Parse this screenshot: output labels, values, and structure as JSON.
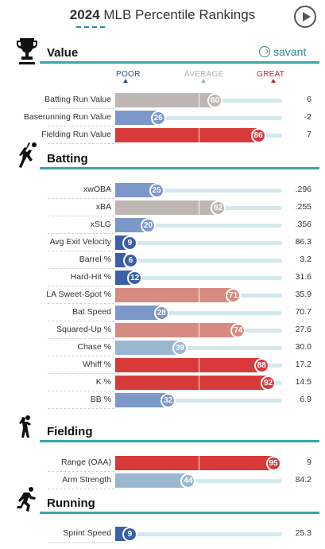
{
  "header": {
    "year": "2024",
    "title": "MLB Percentile Rankings"
  },
  "brand": {
    "name": "savant"
  },
  "scale": {
    "poor": "POOR",
    "average": "AVERAGE",
    "great": "GREAT"
  },
  "colors": {
    "section_line": "#3aa6a6",
    "track": "#d5e8ee",
    "poor_dark": "#3b5fa8",
    "poor": "#7c98c8",
    "cool": "#9bb7d0",
    "neutral": "#bdb6b3",
    "warm": "#d78a80",
    "great": "#d83a3a"
  },
  "chart_data": {
    "type": "bar",
    "xlim": [
      0,
      100
    ],
    "sections": [
      {
        "title": "Value",
        "icon": "trophy-icon",
        "rows": [
          {
            "label": "Batting Run Value",
            "percentile": 60,
            "value": "6"
          },
          {
            "label": "Baserunning Run Value",
            "percentile": 26,
            "value": "-2"
          },
          {
            "label": "Fielding Run Value",
            "percentile": 86,
            "value": "7"
          }
        ]
      },
      {
        "title": "Batting",
        "icon": "batter-icon",
        "rows": [
          {
            "label": "xwOBA",
            "percentile": 25,
            "value": ".296"
          },
          {
            "label": "xBA",
            "percentile": 62,
            "value": ".255"
          },
          {
            "label": "xSLG",
            "percentile": 20,
            "value": ".356"
          },
          {
            "label": "Avg Exit Velocity",
            "percentile": 9,
            "value": "86.3"
          },
          {
            "label": "Barrel %",
            "percentile": 6,
            "value": "3.2"
          },
          {
            "label": "Hard-Hit %",
            "percentile": 12,
            "value": "31.6"
          },
          {
            "label": "LA Sweet-Spot %",
            "percentile": 71,
            "value": "35.9"
          },
          {
            "label": "Bat Speed",
            "percentile": 28,
            "value": "70.7"
          },
          {
            "label": "Squared-Up %",
            "percentile": 74,
            "value": "27.6"
          },
          {
            "label": "Chase %",
            "percentile": 39,
            "value": "30.0"
          },
          {
            "label": "Whiff %",
            "percentile": 88,
            "value": "17.2"
          },
          {
            "label": "K %",
            "percentile": 92,
            "value": "14.5"
          },
          {
            "label": "BB %",
            "percentile": 32,
            "value": "6.9"
          }
        ]
      },
      {
        "title": "Fielding",
        "icon": "fielder-icon",
        "rows": [
          {
            "label": "Range (OAA)",
            "percentile": 95,
            "value": "9"
          },
          {
            "label": "Arm Strength",
            "percentile": 44,
            "value": "84.2"
          }
        ]
      },
      {
        "title": "Running",
        "icon": "runner-icon",
        "rows": [
          {
            "label": "Sprint Speed",
            "percentile": 9,
            "value": "25.3"
          }
        ]
      }
    ]
  }
}
